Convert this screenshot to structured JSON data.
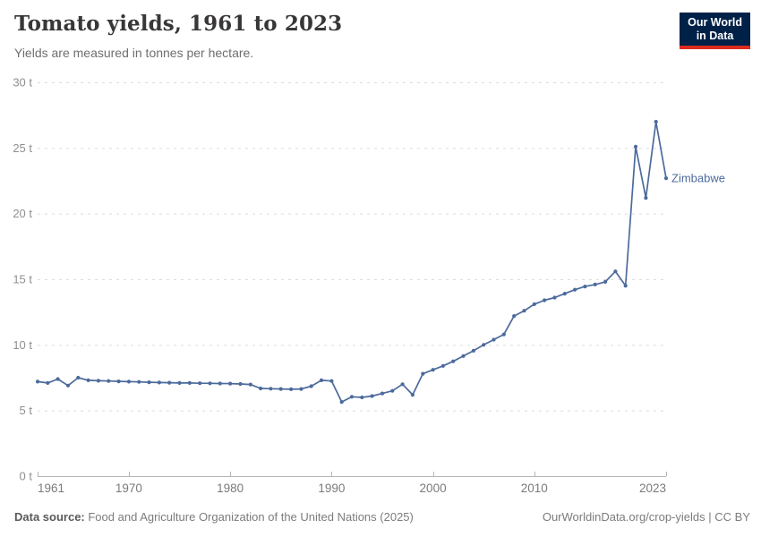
{
  "header": {
    "title": "Tomato yields, 1961 to 2023",
    "subtitle": "Yields are measured in tonnes per hectare.",
    "logo": {
      "line1": "Our World",
      "line2": "in Data"
    }
  },
  "colors": {
    "series_blue": "#4c6a9c",
    "logo_bg": "#002147",
    "logo_red": "#dc2a1e"
  },
  "chart_data": {
    "type": "line",
    "title": "Tomato yields, 1961 to 2023",
    "unit": "tonnes per hectare",
    "xlabel": "",
    "ylabel": "",
    "xlim": [
      1961,
      2023
    ],
    "ylim": [
      0,
      30
    ],
    "x_ticks": [
      1961,
      1970,
      1980,
      1990,
      2000,
      2010,
      2023
    ],
    "y_ticks": [
      0,
      5,
      10,
      15,
      20,
      25,
      30
    ],
    "y_tick_format": "{v} t",
    "grid": "horizontal-dashed",
    "legend": "end-of-line-label",
    "series": [
      {
        "name": "Zimbabwe",
        "color": "#4c6a9c",
        "x": [
          1961,
          1962,
          1963,
          1964,
          1965,
          1966,
          1967,
          1968,
          1969,
          1970,
          1971,
          1972,
          1973,
          1974,
          1975,
          1976,
          1977,
          1978,
          1979,
          1980,
          1981,
          1982,
          1983,
          1984,
          1985,
          1986,
          1987,
          1988,
          1989,
          1990,
          1991,
          1992,
          1993,
          1994,
          1995,
          1996,
          1997,
          1998,
          1999,
          2000,
          2001,
          2002,
          2003,
          2004,
          2005,
          2006,
          2007,
          2008,
          2009,
          2010,
          2011,
          2012,
          2013,
          2014,
          2015,
          2016,
          2017,
          2018,
          2019,
          2020,
          2021,
          2022,
          2023
        ],
        "values": [
          7.2,
          7.1,
          7.4,
          6.9,
          7.5,
          7.3,
          7.27,
          7.25,
          7.22,
          7.2,
          7.18,
          7.15,
          7.13,
          7.12,
          7.1,
          7.1,
          7.08,
          7.07,
          7.06,
          7.05,
          7.02,
          6.98,
          6.68,
          6.66,
          6.64,
          6.62,
          6.64,
          6.85,
          7.3,
          7.25,
          5.65,
          6.05,
          6.0,
          6.1,
          6.3,
          6.5,
          7.0,
          6.2,
          7.8,
          8.1,
          8.4,
          8.75,
          9.15,
          9.55,
          10.0,
          10.4,
          10.8,
          12.2,
          12.6,
          13.1,
          13.4,
          13.6,
          13.9,
          14.2,
          14.45,
          14.6,
          14.8,
          15.6,
          14.5,
          25.1,
          21.2,
          27.0,
          22.7
        ]
      }
    ]
  },
  "footer": {
    "source_label": "Data source:",
    "source_text": " Food and Agriculture Organization of the United Nations (2025)",
    "attribution": "OurWorldinData.org/crop-yields | CC BY"
  }
}
